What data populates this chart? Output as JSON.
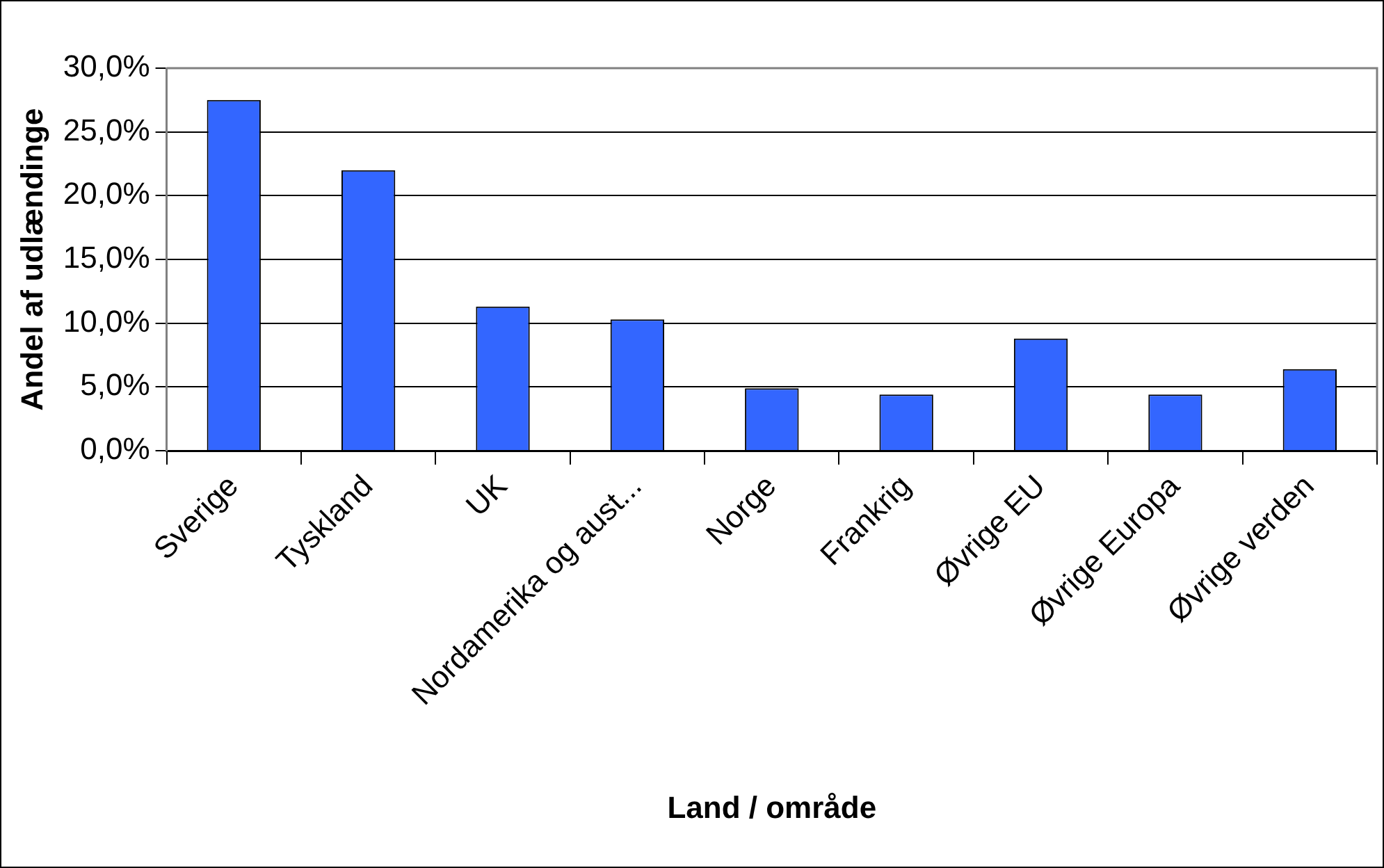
{
  "chart_data": {
    "type": "bar",
    "xlabel": "Land / område",
    "ylabel": "Andel af udlændinge",
    "categories": [
      "Sverige",
      "Tyskland",
      "UK",
      "Nordamerika og aust...",
      "Norge",
      "Frankrig",
      "Øvrige EU",
      "Øvrige Europa",
      "Øvrige verden"
    ],
    "values": [
      27.5,
      22.0,
      11.3,
      10.3,
      4.9,
      4.4,
      8.8,
      4.4,
      6.4
    ],
    "color": "#3366ff",
    "ylim": [
      0,
      30
    ],
    "yticks": [
      {
        "value": 0,
        "label": "0,0%"
      },
      {
        "value": 5,
        "label": "5,0%"
      },
      {
        "value": 10,
        "label": "10,0%"
      },
      {
        "value": 15,
        "label": "15,0%"
      },
      {
        "value": 20,
        "label": "20,0%"
      },
      {
        "value": 25,
        "label": "25,0%"
      },
      {
        "value": 30,
        "label": "30,0%"
      }
    ],
    "grid": "y",
    "legend": false
  }
}
